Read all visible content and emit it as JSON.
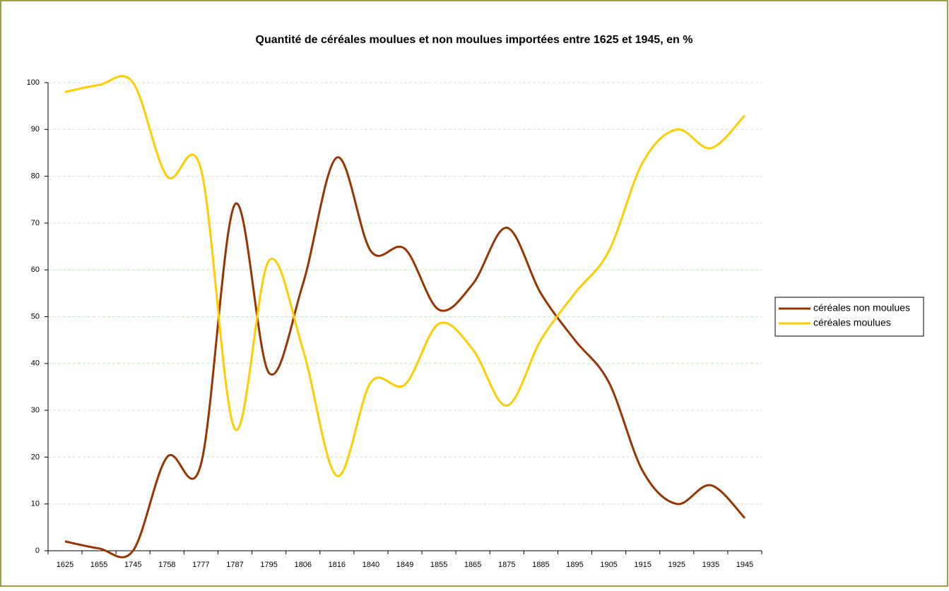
{
  "chart_data": {
    "type": "line",
    "title": "Quantité de céréales moulues et non moulues importées entre 1625 et 1945, en %",
    "categories": [
      "1625",
      "1655",
      "1745",
      "1758",
      "1777",
      "1787",
      "1795",
      "1806",
      "1816",
      "1840",
      "1849",
      "1855",
      "1865",
      "1875",
      "1885",
      "1895",
      "1905",
      "1915",
      "1925",
      "1935",
      "1945"
    ],
    "series": [
      {
        "name": "céréales non moulues",
        "color": "#993300",
        "values": [
          2,
          0.5,
          0,
          20,
          18.5,
          74,
          38,
          57,
          84,
          64,
          64.5,
          51.5,
          57,
          69,
          55,
          45,
          36,
          17,
          10,
          14,
          7
        ]
      },
      {
        "name": "céréales moulues",
        "color": "#FFCC00",
        "values": [
          98,
          99.5,
          100,
          80,
          81.5,
          26,
          62,
          43,
          16,
          36,
          35.5,
          48.5,
          43,
          31,
          45,
          55,
          64,
          83,
          90,
          86,
          93
        ]
      }
    ],
    "ylim": [
      0,
      100
    ],
    "yticks": [
      0,
      10,
      20,
      30,
      40,
      50,
      60,
      70,
      80,
      90,
      100
    ],
    "grid": true,
    "legend": "right"
  }
}
